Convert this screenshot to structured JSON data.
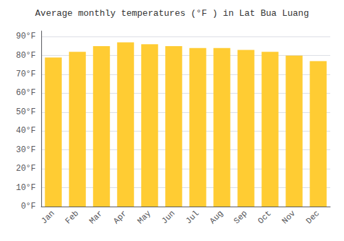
{
  "chart_data": {
    "type": "bar",
    "title": "Average monthly temperatures (°F ) in Lat Bua Luang",
    "categories": [
      "Jan",
      "Feb",
      "Mar",
      "Apr",
      "May",
      "Jun",
      "Jul",
      "Aug",
      "Sep",
      "Oct",
      "Nov",
      "Dec"
    ],
    "values": [
      79,
      82,
      85,
      87,
      86,
      85,
      84,
      84,
      83,
      82,
      80,
      77
    ],
    "color": "#FFCC33",
    "ylim": [
      0,
      93
    ],
    "yticks": [
      {
        "value": 0,
        "label": "0°F"
      },
      {
        "value": 10,
        "label": "10°F"
      },
      {
        "value": 20,
        "label": "20°F"
      },
      {
        "value": 30,
        "label": "30°F"
      },
      {
        "value": 40,
        "label": "40°F"
      },
      {
        "value": 50,
        "label": "50°F"
      },
      {
        "value": 60,
        "label": "60°F"
      },
      {
        "value": 70,
        "label": "70°F"
      },
      {
        "value": 80,
        "label": "80°F"
      },
      {
        "value": 90,
        "label": "90°F"
      }
    ],
    "grid": true
  }
}
